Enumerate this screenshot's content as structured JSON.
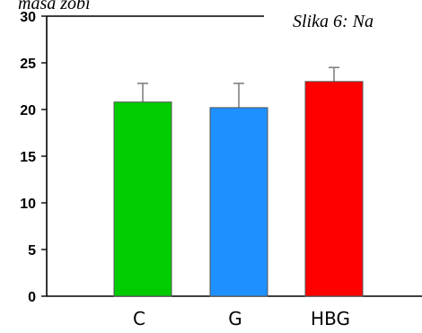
{
  "captions": {
    "top_left": "masa zobi",
    "top_right": "Slika 6: Na"
  },
  "colors": {
    "axis": "#000000",
    "error_bar": "#808080",
    "bar_outline": "#555555"
  },
  "chart_data": {
    "type": "bar",
    "categories": [
      "C",
      "G",
      "HBG"
    ],
    "values": [
      20.8,
      20.2,
      23.0
    ],
    "errors": [
      2.0,
      2.6,
      1.5
    ],
    "bar_colors": [
      "#00cc00",
      "#1e90ff",
      "#ff0000"
    ],
    "ylim": [
      0,
      30
    ],
    "yticks": [
      "0",
      "5",
      "10",
      "15",
      "20",
      "25",
      "30"
    ],
    "title": "",
    "xlabel": "",
    "ylabel": "",
    "grid": false,
    "legend": false
  }
}
